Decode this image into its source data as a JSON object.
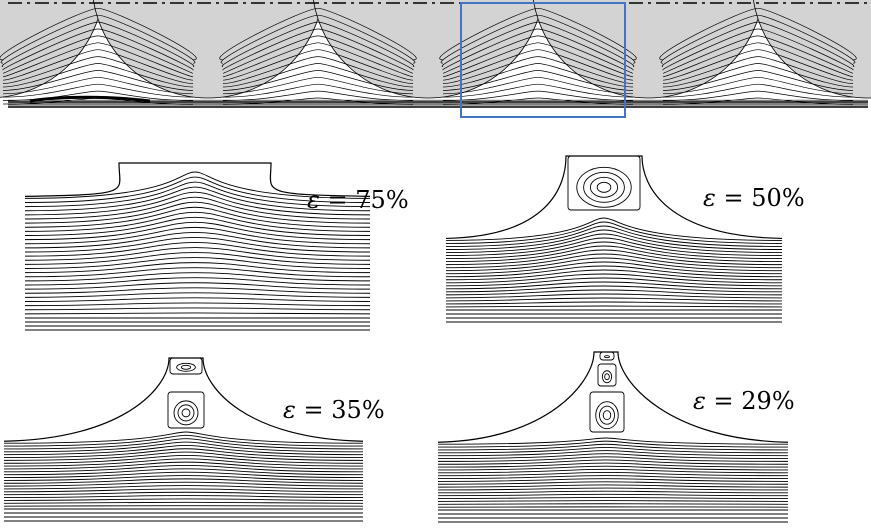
{
  "panels": [
    {
      "symbol": "ε",
      "equals": "=",
      "value": "75%"
    },
    {
      "symbol": "ε",
      "equals": "=",
      "value": "50%"
    },
    {
      "symbol": "ε",
      "equals": "=",
      "value": "35%"
    },
    {
      "symbol": "ε",
      "equals": "=",
      "value": "29%"
    }
  ],
  "colors": {
    "grain_fill": "#d3d3d3",
    "streamline": "#000000",
    "highlight_box": "#4472c4",
    "centerline": "#000000"
  }
}
